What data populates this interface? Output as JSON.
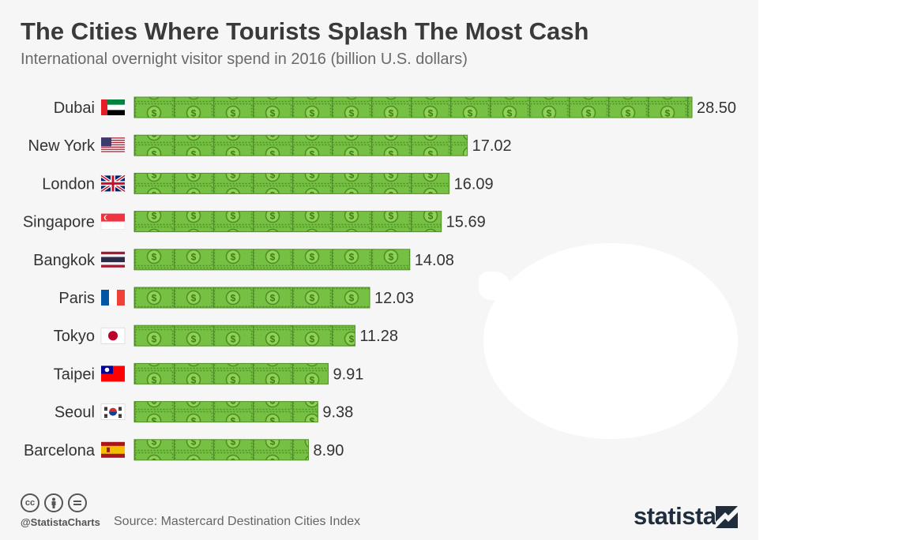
{
  "header": {
    "title": "The Cities Where Tourists Splash The Most Cash",
    "subtitle": "International overnight visitor spend in 2016 (billion U.S. dollars)"
  },
  "chart_data": {
    "type": "bar",
    "orientation": "horizontal",
    "title": "The Cities Where Tourists Splash The Most Cash",
    "subtitle": "International overnight visitor spend in 2016 (billion U.S. dollars)",
    "categories": [
      "Dubai",
      "New York",
      "London",
      "Singapore",
      "Bangkok",
      "Paris",
      "Tokyo",
      "Taipei",
      "Seoul",
      "Barcelona"
    ],
    "values": [
      28.5,
      17.02,
      16.09,
      15.69,
      14.08,
      12.03,
      11.28,
      9.91,
      9.38,
      8.9
    ],
    "value_labels": [
      "28.50",
      "17.02",
      "16.09",
      "15.69",
      "14.08",
      "12.03",
      "11.28",
      "9.91",
      "9.38",
      "8.90"
    ],
    "flags": [
      "uae-flag-icon",
      "usa-flag-icon",
      "uk-flag-icon",
      "singapore-flag-icon",
      "thailand-flag-icon",
      "france-flag-icon",
      "japan-flag-icon",
      "taiwan-flag-icon",
      "south-korea-flag-icon",
      "spain-flag-icon"
    ],
    "bar_style": "dollar-banknotes",
    "xlim": [
      0,
      28.5
    ],
    "xlabel": "",
    "ylabel": "",
    "grid": false,
    "colors": {
      "bill": "#76c043",
      "bill_dark": "#5a9e2a",
      "bill_light": "#8fd256"
    }
  },
  "footer": {
    "handle": "@StatistaCharts",
    "source": "Source: Mastercard Destination Cities Index",
    "brand": "statista",
    "license_icons": [
      "cc-icon",
      "by-icon",
      "nd-icon"
    ]
  }
}
